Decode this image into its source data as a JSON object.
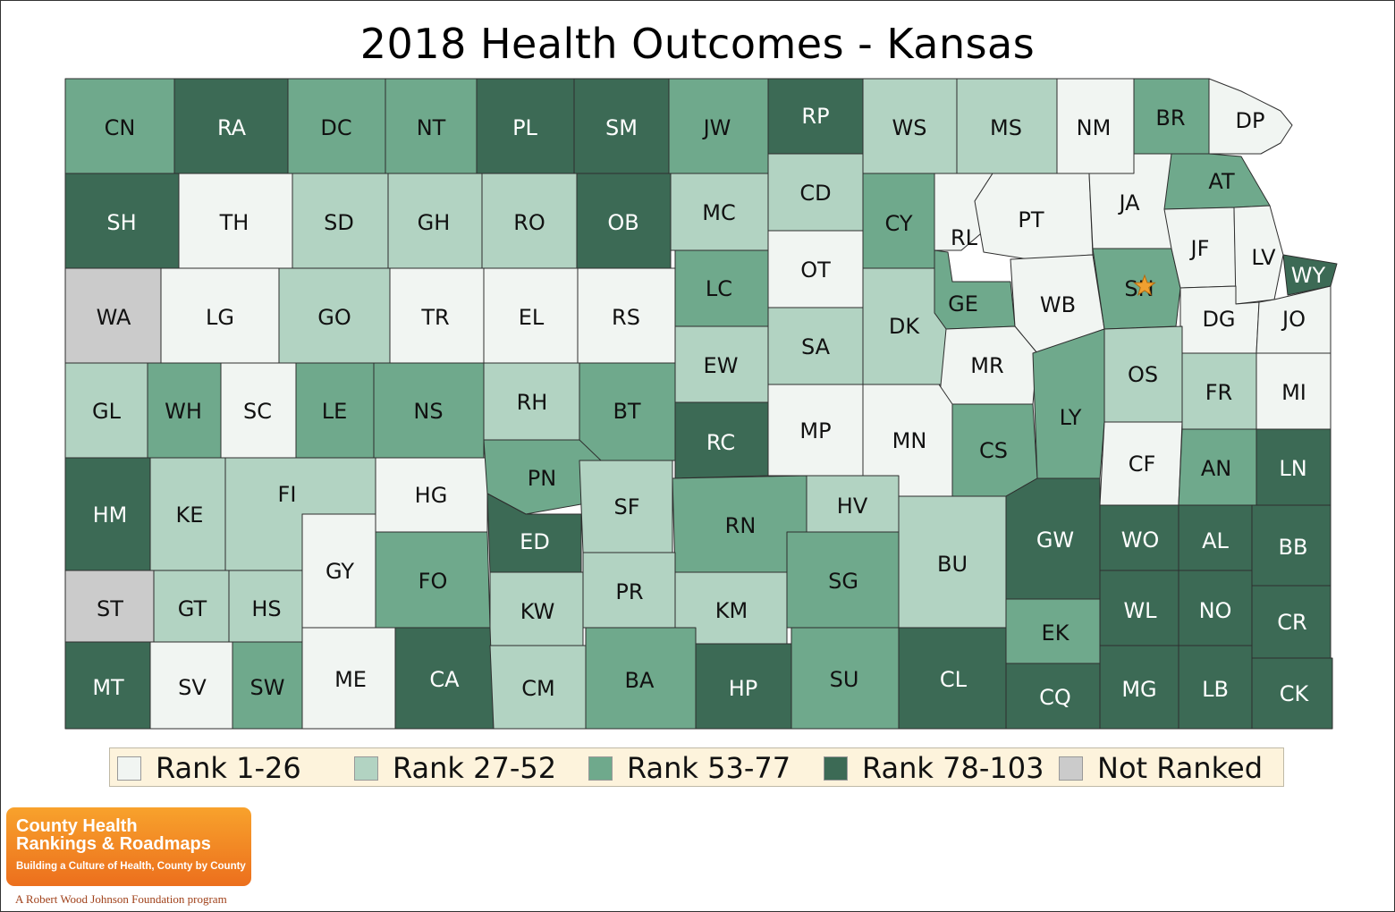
{
  "title": "2018 Health Outcomes - Kansas",
  "colors": {
    "rank_1_26": "#f1f5f2",
    "rank_27_52": "#b2d3c2",
    "rank_53_77": "#6fa98c",
    "rank_78_103": "#3c6a55",
    "not_ranked": "#cbcbcb",
    "border": "#2e2e2e"
  },
  "legend": [
    {
      "label": "Rank 1-26",
      "tier": "rank_1_26"
    },
    {
      "label": "Rank 27-52",
      "tier": "rank_27_52"
    },
    {
      "label": "Rank 53-77",
      "tier": "rank_53_77"
    },
    {
      "label": "Rank 78-103",
      "tier": "rank_78_103"
    },
    {
      "label": "Not Ranked",
      "tier": "not_ranked"
    }
  ],
  "counties": [
    {
      "abbr": "CN",
      "tier": "rank_53_77"
    },
    {
      "abbr": "RA",
      "tier": "rank_78_103"
    },
    {
      "abbr": "DC",
      "tier": "rank_53_77"
    },
    {
      "abbr": "NT",
      "tier": "rank_53_77"
    },
    {
      "abbr": "PL",
      "tier": "rank_78_103"
    },
    {
      "abbr": "SM",
      "tier": "rank_78_103"
    },
    {
      "abbr": "JW",
      "tier": "rank_53_77"
    },
    {
      "abbr": "RP",
      "tier": "rank_78_103"
    },
    {
      "abbr": "WS",
      "tier": "rank_27_52"
    },
    {
      "abbr": "MS",
      "tier": "rank_27_52"
    },
    {
      "abbr": "NM",
      "tier": "rank_1_26"
    },
    {
      "abbr": "BR",
      "tier": "rank_53_77"
    },
    {
      "abbr": "DP",
      "tier": "rank_1_26"
    },
    {
      "abbr": "SH",
      "tier": "rank_78_103"
    },
    {
      "abbr": "TH",
      "tier": "rank_1_26"
    },
    {
      "abbr": "SD",
      "tier": "rank_27_52"
    },
    {
      "abbr": "GH",
      "tier": "rank_27_52"
    },
    {
      "abbr": "RO",
      "tier": "rank_27_52"
    },
    {
      "abbr": "OB",
      "tier": "rank_78_103"
    },
    {
      "abbr": "MC",
      "tier": "rank_27_52"
    },
    {
      "abbr": "CD",
      "tier": "rank_27_52"
    },
    {
      "abbr": "CY",
      "tier": "rank_53_77"
    },
    {
      "abbr": "RL",
      "tier": "rank_1_26"
    },
    {
      "abbr": "PT",
      "tier": "rank_1_26"
    },
    {
      "abbr": "JA",
      "tier": "rank_1_26"
    },
    {
      "abbr": "AT",
      "tier": "rank_53_77"
    },
    {
      "abbr": "WA",
      "tier": "not_ranked"
    },
    {
      "abbr": "LG",
      "tier": "rank_1_26"
    },
    {
      "abbr": "GO",
      "tier": "rank_27_52"
    },
    {
      "abbr": "TR",
      "tier": "rank_1_26"
    },
    {
      "abbr": "EL",
      "tier": "rank_1_26"
    },
    {
      "abbr": "RS",
      "tier": "rank_1_26"
    },
    {
      "abbr": "LC",
      "tier": "rank_53_77"
    },
    {
      "abbr": "OT",
      "tier": "rank_1_26"
    },
    {
      "abbr": "GE",
      "tier": "rank_53_77"
    },
    {
      "abbr": "WB",
      "tier": "rank_1_26"
    },
    {
      "abbr": "SN",
      "tier": "rank_53_77"
    },
    {
      "abbr": "JF",
      "tier": "rank_1_26"
    },
    {
      "abbr": "LV",
      "tier": "rank_1_26"
    },
    {
      "abbr": "WY",
      "tier": "rank_78_103"
    },
    {
      "abbr": "DK",
      "tier": "rank_27_52"
    },
    {
      "abbr": "DG",
      "tier": "rank_1_26"
    },
    {
      "abbr": "JO",
      "tier": "rank_1_26"
    },
    {
      "abbr": "GL",
      "tier": "rank_27_52"
    },
    {
      "abbr": "WH",
      "tier": "rank_53_77"
    },
    {
      "abbr": "SC",
      "tier": "rank_1_26"
    },
    {
      "abbr": "LE",
      "tier": "rank_53_77"
    },
    {
      "abbr": "NS",
      "tier": "rank_53_77"
    },
    {
      "abbr": "RH",
      "tier": "rank_27_52"
    },
    {
      "abbr": "BT",
      "tier": "rank_53_77"
    },
    {
      "abbr": "EW",
      "tier": "rank_27_52"
    },
    {
      "abbr": "SA",
      "tier": "rank_27_52"
    },
    {
      "abbr": "MR",
      "tier": "rank_1_26"
    },
    {
      "abbr": "OS",
      "tier": "rank_27_52"
    },
    {
      "abbr": "FR",
      "tier": "rank_27_52"
    },
    {
      "abbr": "MI",
      "tier": "rank_1_26"
    },
    {
      "abbr": "HM",
      "tier": "rank_78_103"
    },
    {
      "abbr": "KE",
      "tier": "rank_27_52"
    },
    {
      "abbr": "FI",
      "tier": "rank_27_52"
    },
    {
      "abbr": "HG",
      "tier": "rank_1_26"
    },
    {
      "abbr": "PN",
      "tier": "rank_53_77"
    },
    {
      "abbr": "SF",
      "tier": "rank_27_52"
    },
    {
      "abbr": "RC",
      "tier": "rank_78_103"
    },
    {
      "abbr": "MP",
      "tier": "rank_1_26"
    },
    {
      "abbr": "MN",
      "tier": "rank_1_26"
    },
    {
      "abbr": "CS",
      "tier": "rank_53_77"
    },
    {
      "abbr": "LY",
      "tier": "rank_53_77"
    },
    {
      "abbr": "CF",
      "tier": "rank_1_26"
    },
    {
      "abbr": "AN",
      "tier": "rank_53_77"
    },
    {
      "abbr": "LN",
      "tier": "rank_78_103"
    },
    {
      "abbr": "ED",
      "tier": "rank_78_103"
    },
    {
      "abbr": "HV",
      "tier": "rank_27_52"
    },
    {
      "abbr": "RN",
      "tier": "rank_53_77"
    },
    {
      "abbr": "GW",
      "tier": "rank_78_103"
    },
    {
      "abbr": "WO",
      "tier": "rank_78_103"
    },
    {
      "abbr": "AL",
      "tier": "rank_78_103"
    },
    {
      "abbr": "BB",
      "tier": "rank_78_103"
    },
    {
      "abbr": "GY",
      "tier": "rank_1_26"
    },
    {
      "abbr": "FO",
      "tier": "rank_53_77"
    },
    {
      "abbr": "BU",
      "tier": "rank_27_52"
    },
    {
      "abbr": "SG",
      "tier": "rank_53_77"
    },
    {
      "abbr": "PR",
      "tier": "rank_27_52"
    },
    {
      "abbr": "ST",
      "tier": "not_ranked"
    },
    {
      "abbr": "GT",
      "tier": "rank_27_52"
    },
    {
      "abbr": "HS",
      "tier": "rank_27_52"
    },
    {
      "abbr": "KW",
      "tier": "rank_27_52"
    },
    {
      "abbr": "KM",
      "tier": "rank_27_52"
    },
    {
      "abbr": "WL",
      "tier": "rank_78_103"
    },
    {
      "abbr": "NO",
      "tier": "rank_78_103"
    },
    {
      "abbr": "CR",
      "tier": "rank_78_103"
    },
    {
      "abbr": "EK",
      "tier": "rank_53_77"
    },
    {
      "abbr": "MT",
      "tier": "rank_78_103"
    },
    {
      "abbr": "SV",
      "tier": "rank_1_26"
    },
    {
      "abbr": "SW",
      "tier": "rank_53_77"
    },
    {
      "abbr": "ME",
      "tier": "rank_1_26"
    },
    {
      "abbr": "CA",
      "tier": "rank_78_103"
    },
    {
      "abbr": "CM",
      "tier": "rank_27_52"
    },
    {
      "abbr": "BA",
      "tier": "rank_53_77"
    },
    {
      "abbr": "HP",
      "tier": "rank_78_103"
    },
    {
      "abbr": "SU",
      "tier": "rank_53_77"
    },
    {
      "abbr": "CL",
      "tier": "rank_78_103"
    },
    {
      "abbr": "CQ",
      "tier": "rank_78_103"
    },
    {
      "abbr": "MG",
      "tier": "rank_78_103"
    },
    {
      "abbr": "LB",
      "tier": "rank_78_103"
    },
    {
      "abbr": "CK",
      "tier": "rank_78_103"
    }
  ],
  "marker": {
    "county": "SN",
    "icon": "star-icon",
    "color": "#f0a030"
  },
  "logo": {
    "line1": "County Health",
    "line2": "Rankings & Roadmaps",
    "tagline": "Building a Culture of Health, County by County",
    "program_note": "A Robert Wood Johnson Foundation program"
  }
}
